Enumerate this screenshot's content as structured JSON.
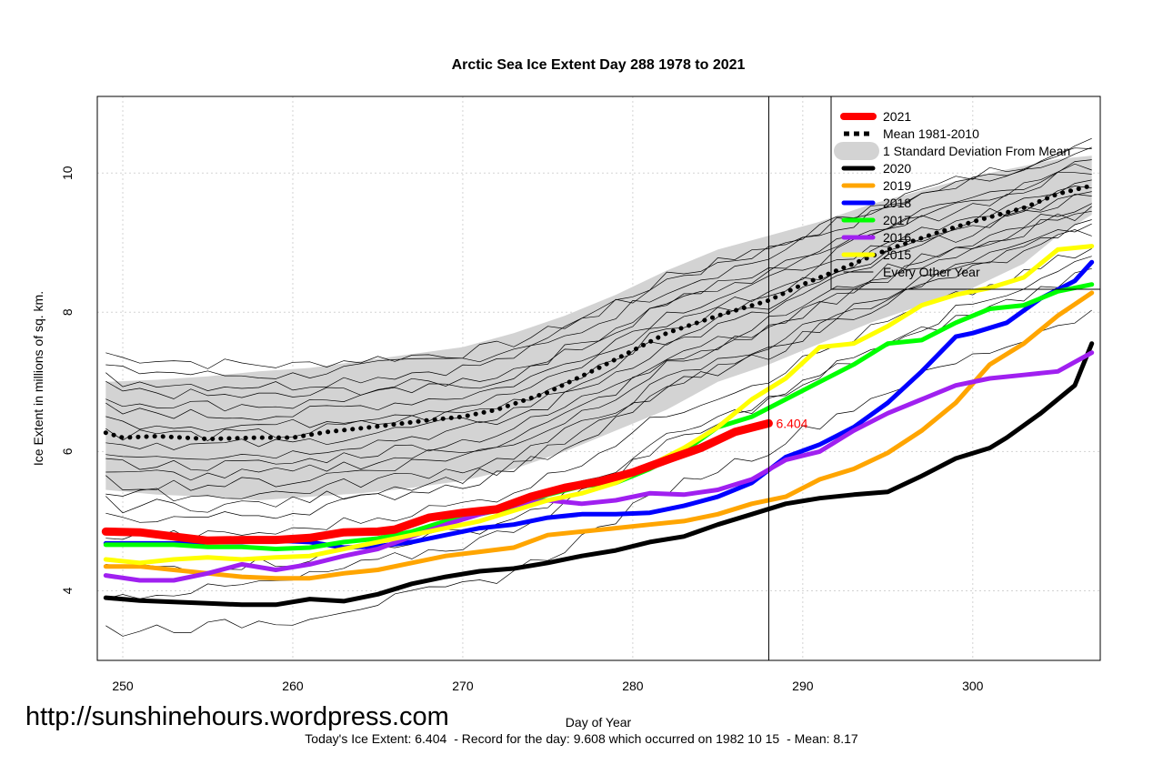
{
  "chart_data": {
    "type": "line",
    "title": "Arctic Sea Ice Extent Day 288 1978 to 2021",
    "xlabel": "Day of Year",
    "ylabel": "Ice Extent in millions of sq. km.",
    "xlim": [
      248.5,
      307.5
    ],
    "ylim": [
      3.0,
      11.1
    ],
    "x_ticks": [
      250,
      260,
      270,
      280,
      290,
      300
    ],
    "y_ticks": [
      4,
      6,
      8,
      10
    ],
    "grid": true,
    "current_day": 288,
    "today_label": "6.404",
    "legend_position": "top-right",
    "legend": [
      {
        "label": "2021",
        "color": "#ff0000",
        "style": "solid-thick"
      },
      {
        "label": "Mean 1981-2010",
        "color": "#000000",
        "style": "dotted"
      },
      {
        "label": "1 Standard Deviation From Mean",
        "color": "#d3d3d3",
        "style": "band"
      },
      {
        "label": "2020",
        "color": "#000000",
        "style": "solid"
      },
      {
        "label": "2019",
        "color": "#ffa500",
        "style": "solid"
      },
      {
        "label": "2018",
        "color": "#0000ff",
        "style": "solid"
      },
      {
        "label": "2017",
        "color": "#00ff00",
        "style": "solid"
      },
      {
        "label": "2016",
        "color": "#a020f0",
        "style": "solid"
      },
      {
        "label": "2015",
        "color": "#ffff00",
        "style": "solid"
      },
      {
        "label": "Every Other Year",
        "color": "#000000",
        "style": "thin"
      }
    ],
    "mean": {
      "x": [
        249,
        250,
        252,
        255,
        258,
        260,
        262,
        265,
        268,
        270,
        272,
        275,
        278,
        280,
        282,
        285,
        288,
        290,
        292,
        295,
        298,
        300,
        303,
        305,
        307
      ],
      "values": [
        6.27,
        6.2,
        6.22,
        6.18,
        6.2,
        6.2,
        6.28,
        6.36,
        6.45,
        6.5,
        6.6,
        6.85,
        7.2,
        7.45,
        7.7,
        7.95,
        8.17,
        8.4,
        8.6,
        8.9,
        9.15,
        9.3,
        9.5,
        9.7,
        9.82
      ]
    },
    "std_band": {
      "x": [
        249,
        252,
        255,
        258,
        261,
        264,
        267,
        270,
        273,
        276,
        279,
        282,
        285,
        288,
        291,
        294,
        297,
        300,
        303,
        305,
        307
      ],
      "upper": [
        7.0,
        7.03,
        7.08,
        7.15,
        7.2,
        7.3,
        7.4,
        7.5,
        7.7,
        7.95,
        8.25,
        8.6,
        8.9,
        9.1,
        9.3,
        9.55,
        9.75,
        9.95,
        10.1,
        10.2,
        10.25
      ],
      "lower": [
        5.45,
        5.38,
        5.35,
        5.3,
        5.35,
        5.4,
        5.48,
        5.58,
        5.75,
        6.0,
        6.3,
        6.6,
        7.0,
        7.25,
        7.55,
        7.85,
        8.1,
        8.35,
        8.7,
        9.1,
        9.4
      ]
    },
    "series": [
      {
        "name": "2021",
        "color": "#ff0000",
        "x": [
          249,
          251,
          253,
          255,
          257,
          259,
          261,
          263,
          265,
          266,
          268,
          270,
          272,
          274,
          276,
          278,
          280,
          282,
          284,
          286,
          288
        ],
        "values": [
          4.85,
          4.84,
          4.78,
          4.72,
          4.73,
          4.73,
          4.76,
          4.84,
          4.85,
          4.88,
          5.05,
          5.12,
          5.17,
          5.35,
          5.48,
          5.57,
          5.7,
          5.88,
          6.05,
          6.28,
          6.404
        ]
      },
      {
        "name": "2020",
        "color": "#000000",
        "x": [
          249,
          251,
          253,
          255,
          257,
          259,
          261,
          263,
          265,
          267,
          269,
          271,
          273,
          275,
          277,
          279,
          281,
          283,
          285,
          287,
          289,
          291,
          293,
          295,
          297,
          299,
          301,
          302,
          304,
          306,
          307
        ],
        "values": [
          3.9,
          3.86,
          3.84,
          3.82,
          3.8,
          3.8,
          3.88,
          3.85,
          3.95,
          4.1,
          4.2,
          4.28,
          4.32,
          4.4,
          4.5,
          4.58,
          4.7,
          4.78,
          4.95,
          5.1,
          5.25,
          5.33,
          5.38,
          5.42,
          5.65,
          5.9,
          6.05,
          6.2,
          6.55,
          6.95,
          7.55
        ]
      },
      {
        "name": "2019",
        "color": "#ffa500",
        "x": [
          249,
          251,
          253,
          255,
          257,
          259,
          261,
          263,
          265,
          267,
          269,
          271,
          273,
          275,
          277,
          279,
          281,
          283,
          285,
          287,
          289,
          291,
          293,
          295,
          297,
          299,
          301,
          303,
          305,
          307
        ],
        "values": [
          4.35,
          4.35,
          4.3,
          4.25,
          4.2,
          4.18,
          4.18,
          4.25,
          4.3,
          4.4,
          4.5,
          4.56,
          4.62,
          4.8,
          4.85,
          4.9,
          4.95,
          5.0,
          5.1,
          5.25,
          5.35,
          5.6,
          5.75,
          5.98,
          6.3,
          6.7,
          7.25,
          7.55,
          7.95,
          8.28
        ]
      },
      {
        "name": "2018",
        "color": "#0000ff",
        "x": [
          249,
          251,
          253,
          255,
          257,
          259,
          261,
          263,
          265,
          267,
          269,
          271,
          273,
          275,
          277,
          279,
          281,
          283,
          285,
          287,
          289,
          291,
          293,
          295,
          297,
          299,
          300,
          302,
          304,
          306,
          307
        ],
        "values": [
          4.68,
          4.68,
          4.68,
          4.7,
          4.7,
          4.72,
          4.7,
          4.62,
          4.64,
          4.7,
          4.8,
          4.9,
          4.95,
          5.05,
          5.1,
          5.1,
          5.12,
          5.22,
          5.35,
          5.55,
          5.92,
          6.1,
          6.35,
          6.7,
          7.15,
          7.65,
          7.7,
          7.85,
          8.2,
          8.45,
          8.72
        ]
      },
      {
        "name": "2017",
        "color": "#00ff00",
        "x": [
          249,
          251,
          253,
          255,
          257,
          259,
          261,
          263,
          265,
          267,
          269,
          271,
          273,
          275,
          277,
          279,
          281,
          283,
          285,
          287,
          289,
          291,
          293,
          295,
          297,
          299,
          301,
          303,
          305,
          307
        ],
        "values": [
          4.66,
          4.66,
          4.66,
          4.63,
          4.63,
          4.6,
          4.62,
          4.7,
          4.75,
          4.85,
          5.0,
          5.1,
          5.2,
          5.38,
          5.5,
          5.55,
          5.75,
          6.0,
          6.35,
          6.5,
          6.75,
          7.0,
          7.25,
          7.55,
          7.6,
          7.85,
          8.05,
          8.1,
          8.3,
          8.4
        ]
      },
      {
        "name": "2016",
        "color": "#a020f0",
        "x": [
          249,
          251,
          253,
          255,
          257,
          259,
          261,
          263,
          265,
          267,
          269,
          271,
          273,
          275,
          277,
          279,
          281,
          283,
          285,
          287,
          289,
          291,
          293,
          295,
          297,
          299,
          301,
          303,
          305,
          307
        ],
        "values": [
          4.22,
          4.15,
          4.15,
          4.25,
          4.38,
          4.3,
          4.38,
          4.5,
          4.6,
          4.78,
          4.95,
          5.1,
          5.22,
          5.3,
          5.25,
          5.3,
          5.4,
          5.38,
          5.45,
          5.6,
          5.88,
          6.0,
          6.3,
          6.55,
          6.75,
          6.95,
          7.05,
          7.1,
          7.15,
          7.42
        ]
      },
      {
        "name": "2015",
        "color": "#ffff00",
        "x": [
          249,
          251,
          253,
          255,
          257,
          259,
          261,
          263,
          265,
          267,
          269,
          271,
          273,
          275,
          277,
          279,
          281,
          283,
          285,
          287,
          289,
          291,
          293,
          295,
          297,
          299,
          301,
          303,
          305,
          307
        ],
        "values": [
          4.45,
          4.4,
          4.45,
          4.48,
          4.45,
          4.48,
          4.5,
          4.6,
          4.7,
          4.8,
          4.9,
          5.0,
          5.15,
          5.3,
          5.4,
          5.55,
          5.8,
          6.05,
          6.35,
          6.75,
          7.05,
          7.5,
          7.55,
          7.8,
          8.1,
          8.25,
          8.35,
          8.5,
          8.9,
          8.95
        ]
      }
    ]
  },
  "watermark": "http://sunshinehours.wordpress.com",
  "footer": {
    "today": "Today's Ice Extent: 6.404",
    "record": "- Record for the day: 9.608 which occurred on 1982 10 15",
    "mean": "- Mean: 8.17"
  }
}
